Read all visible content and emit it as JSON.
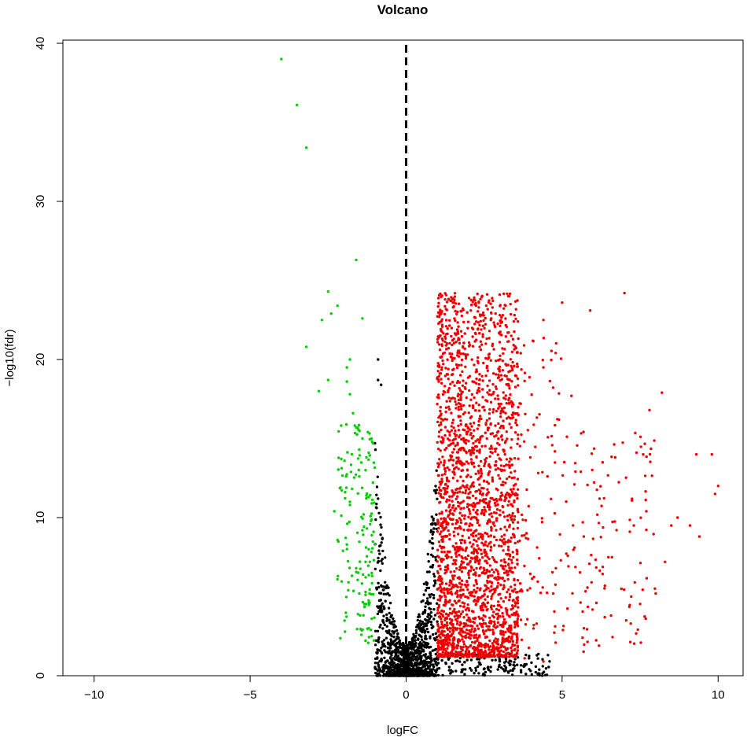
{
  "chart_data": {
    "type": "scatter",
    "title": "Volcano",
    "xlabel": "logFC",
    "ylabel": "−log10(fdr)",
    "xlim": [
      -11,
      10.8
    ],
    "ylim": [
      0,
      40.2
    ],
    "xticks": [
      -10,
      -5,
      0,
      5,
      10
    ],
    "yticks": [
      0,
      10,
      20,
      30,
      40
    ],
    "reference_line": {
      "x": 0,
      "style": "dashed"
    },
    "grid": false,
    "legend": "none",
    "colors": {
      "down": "#00cc00",
      "up": "#ee0000",
      "ns": "#000000"
    },
    "groups": [
      {
        "name": "down",
        "points": [
          [
            -4.0,
            39.0
          ],
          [
            -3.5,
            36.1
          ],
          [
            -3.2,
            33.4
          ],
          [
            -1.6,
            26.3
          ],
          [
            -2.5,
            24.3
          ],
          [
            -2.2,
            23.4
          ],
          [
            -2.4,
            22.9
          ],
          [
            -2.7,
            22.5
          ],
          [
            -1.4,
            22.6
          ],
          [
            -3.2,
            20.8
          ],
          [
            -1.8,
            20.0
          ],
          [
            -1.9,
            19.5
          ],
          [
            -2.5,
            18.7
          ],
          [
            -1.9,
            18.6
          ],
          [
            -2.8,
            18.0
          ],
          [
            -1.8,
            17.8
          ],
          [
            -1.7,
            16.6
          ],
          [
            -1.6,
            15.7
          ],
          [
            -1.4,
            15.0
          ],
          [
            -1.5,
            14.3
          ],
          [
            -1.2,
            14.1
          ],
          [
            -1.3,
            13.0
          ],
          [
            -1.5,
            12.6
          ],
          [
            -2.1,
            11.9
          ],
          [
            -1.2,
            11.3
          ],
          [
            -1.8,
            11.0
          ],
          [
            -2.3,
            10.4
          ],
          [
            -1.1,
            10.9
          ],
          [
            -1.4,
            9.2
          ],
          [
            -1.9,
            8.3
          ],
          [
            -1.2,
            8.0
          ],
          [
            -1.3,
            7.2
          ],
          [
            -1.6,
            6.8
          ],
          [
            -1.1,
            6.5
          ],
          [
            -2.2,
            6.1
          ],
          [
            -1.3,
            5.3
          ],
          [
            -1.2,
            4.6
          ],
          [
            -1.1,
            3.6
          ],
          [
            -1.2,
            3.0
          ],
          [
            -1.1,
            2.5
          ]
        ]
      },
      {
        "name": "up",
        "points": [
          [
            7.0,
            24.2
          ],
          [
            3.0,
            24.1
          ],
          [
            3.3,
            24.0
          ],
          [
            1.5,
            23.6
          ],
          [
            5.0,
            23.6
          ],
          [
            5.9,
            23.1
          ],
          [
            4.4,
            22.5
          ],
          [
            8.2,
            17.9
          ],
          [
            7.8,
            16.8
          ],
          [
            9.3,
            14.0
          ],
          [
            9.8,
            14.0
          ],
          [
            10.0,
            12.0
          ],
          [
            9.9,
            11.5
          ],
          [
            8.7,
            10.0
          ],
          [
            7.3,
            9.5
          ],
          [
            8.3,
            7.2
          ],
          [
            8.0,
            5.2
          ],
          [
            7.2,
            3.3
          ],
          [
            5.7,
            3.0
          ],
          [
            6.1,
            4.6
          ],
          [
            5.3,
            17.7
          ],
          [
            4.4,
            19.5
          ],
          [
            4.9,
            16.2
          ],
          [
            6.3,
            13.5
          ],
          [
            5.6,
            12.9
          ],
          [
            6.2,
            11.2
          ],
          [
            7.6,
            14.0
          ],
          [
            8.5,
            9.5
          ],
          [
            9.1,
            9.5
          ],
          [
            9.4,
            8.8
          ],
          [
            4.8,
            6.8
          ],
          [
            6.6,
            7.5
          ],
          [
            6.9,
            5.5
          ],
          [
            7.7,
            10.4
          ],
          [
            5.4,
            8.1
          ],
          [
            3.8,
            1.1
          ],
          [
            4.4,
            0.9
          ]
        ],
        "cloud": {
          "x_range": [
            1.0,
            3.6
          ],
          "y_max": 24.2,
          "approx_count": 2400
        }
      },
      {
        "name": "ns",
        "points": [
          [
            -0.9,
            20.0
          ],
          [
            -0.8,
            18.4
          ],
          [
            -0.9,
            18.7
          ],
          [
            -1.0,
            14.7
          ],
          [
            -0.9,
            11.2
          ]
        ],
        "cloud": {
          "x_range": [
            -1.0,
            1.0
          ],
          "y_max": 15.0,
          "approx_count": 1200
        }
      }
    ]
  }
}
